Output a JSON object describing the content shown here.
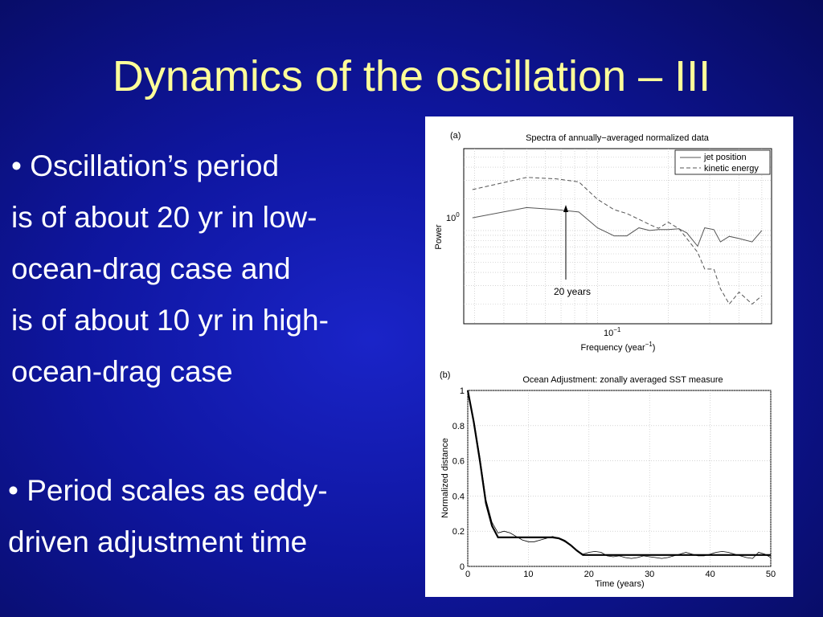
{
  "slide": {
    "title": "Dynamics of the oscillation – III",
    "bullet1_lines": [
      "• Oscillation’s period",
      "is of about 20 yr in low-",
      "ocean-drag case and",
      "is of about 10 yr in high-",
      "ocean-drag case"
    ],
    "bullet2_lines": [
      "• Period scales as eddy-",
      "driven adjustment time"
    ],
    "colors": {
      "background": "#0f16a0",
      "title": "#ffff99",
      "text": "#ffffff"
    }
  },
  "chart_data": [
    {
      "type": "line",
      "panel_label": "(a)",
      "title": "Spectra of annually−averaged normalized data",
      "xlabel": "Frequency (year",
      "xlabel_sup": "−1",
      "xlabel_end": ")",
      "ylabel": "Power",
      "x_scale": "log",
      "y_scale": "log",
      "x_tick_label": {
        "base": "10",
        "exp": "−1"
      },
      "y_tick_label": {
        "base": "10",
        "exp": "0"
      },
      "annotation": "20 years",
      "legend": {
        "position": "top-right",
        "entries": [
          "jet position",
          "kinetic energy"
        ]
      },
      "grid": true,
      "series": [
        {
          "name": "jet position",
          "style": "solid",
          "x": [
            0.0294,
            0.05,
            0.0667,
            0.0833,
            0.1,
            0.1176,
            0.1333,
            0.15,
            0.1667,
            0.1818,
            0.2,
            0.2222,
            0.24,
            0.2667,
            0.2857,
            0.3125,
            0.3333,
            0.3636,
            0.4,
            0.4545,
            0.5
          ],
          "y": [
            1.32,
            1.65,
            1.58,
            1.5,
            1.06,
            0.89,
            0.89,
            1.06,
            1.0,
            1.02,
            1.02,
            1.04,
            0.95,
            0.71,
            1.06,
            1.02,
            0.78,
            0.88,
            0.84,
            0.78,
            1.0
          ]
        },
        {
          "name": "kinetic energy",
          "style": "dashed",
          "x": [
            0.0294,
            0.05,
            0.0667,
            0.0833,
            0.1,
            0.1176,
            0.1333,
            0.15,
            0.1667,
            0.1818,
            0.2,
            0.2222,
            0.24,
            0.2667,
            0.2857,
            0.3125,
            0.3333,
            0.3636,
            0.4,
            0.4545,
            0.5
          ],
          "y": [
            2.45,
            3.2,
            3.1,
            2.9,
            1.98,
            1.58,
            1.45,
            1.28,
            1.14,
            1.05,
            1.2,
            1.04,
            0.84,
            0.62,
            0.43,
            0.43,
            0.28,
            0.2,
            0.26,
            0.2,
            0.24
          ]
        }
      ]
    },
    {
      "type": "line",
      "panel_label": "(b)",
      "title": "Ocean Adjustment: zonally averaged SST measure",
      "xlabel": "Time (years)",
      "ylabel": "Normalized distance",
      "xlim": [
        0,
        50
      ],
      "ylim": [
        0,
        1
      ],
      "x_ticks": [
        "0",
        "10",
        "20",
        "30",
        "40",
        "50"
      ],
      "y_ticks": [
        "0",
        "0.2",
        "0.4",
        "0.6",
        "0.8",
        "1"
      ],
      "grid": true,
      "series": [
        {
          "style": "thick",
          "x": [
            0,
            1,
            2,
            3,
            4,
            5,
            6,
            7,
            8,
            9,
            10,
            11,
            12,
            13,
            14,
            15,
            16,
            17,
            18,
            19,
            20,
            25,
            30,
            35,
            40,
            45,
            50
          ],
          "y": [
            1.0,
            0.82,
            0.6,
            0.36,
            0.23,
            0.165,
            0.165,
            0.165,
            0.165,
            0.165,
            0.165,
            0.165,
            0.165,
            0.165,
            0.165,
            0.16,
            0.145,
            0.12,
            0.09,
            0.065,
            0.065,
            0.065,
            0.065,
            0.065,
            0.065,
            0.065,
            0.065
          ]
        },
        {
          "style": "thin",
          "x": [
            0,
            1,
            2,
            3,
            4,
            5,
            6,
            7,
            8,
            9,
            10,
            11,
            12,
            13,
            14,
            15,
            16,
            17,
            18,
            19,
            20,
            21,
            22,
            23,
            24,
            25,
            26,
            27,
            28,
            29,
            30,
            31,
            32,
            33,
            34,
            35,
            36,
            37,
            38,
            39,
            40,
            41,
            42,
            43,
            44,
            45,
            46,
            47,
            48,
            49,
            50
          ],
          "y": [
            1.0,
            0.83,
            0.62,
            0.38,
            0.25,
            0.19,
            0.2,
            0.19,
            0.17,
            0.15,
            0.14,
            0.14,
            0.15,
            0.16,
            0.17,
            0.16,
            0.14,
            0.12,
            0.09,
            0.07,
            0.08,
            0.085,
            0.08,
            0.06,
            0.055,
            0.06,
            0.05,
            0.045,
            0.05,
            0.06,
            0.055,
            0.05,
            0.045,
            0.05,
            0.06,
            0.07,
            0.08,
            0.07,
            0.06,
            0.06,
            0.07,
            0.08,
            0.085,
            0.08,
            0.07,
            0.06,
            0.05,
            0.045,
            0.08,
            0.07,
            0.05
          ]
        }
      ]
    }
  ]
}
